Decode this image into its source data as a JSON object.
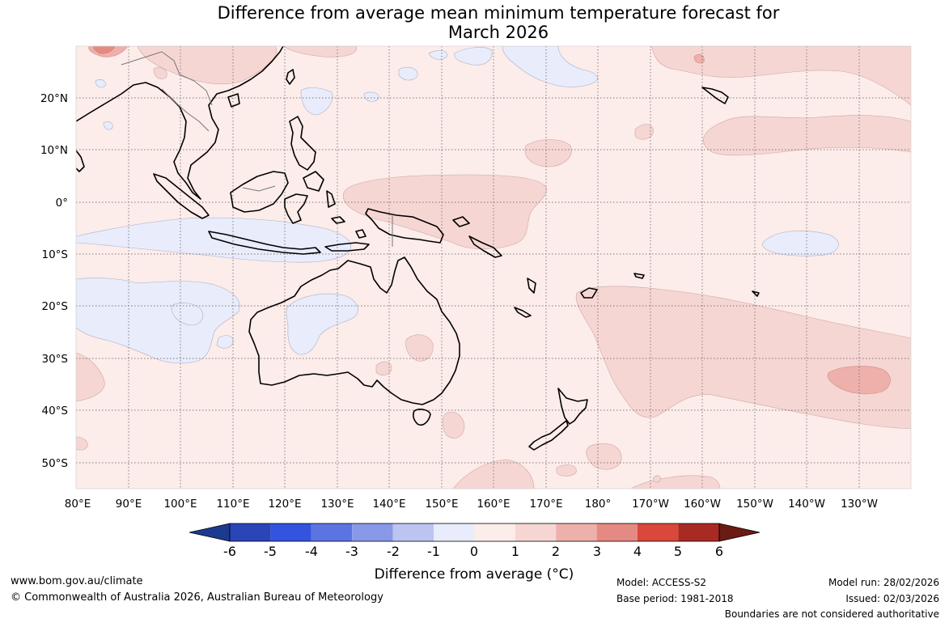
{
  "title": {
    "line1": "Difference from average mean minimum temperature forecast for",
    "line2": "March 2026"
  },
  "map": {
    "lat_labels": [
      "20°N",
      "10°N",
      "0°",
      "10°S",
      "20°S",
      "30°S",
      "40°S",
      "50°S"
    ],
    "lon_labels": [
      "80°E",
      "90°E",
      "100°E",
      "110°E",
      "120°E",
      "130°E",
      "140°E",
      "150°E",
      "160°E",
      "170°E",
      "180°",
      "170°W",
      "160°W",
      "150°W",
      "140°W",
      "130°W"
    ],
    "colors": {
      "ocean_0_1": "#fcecea",
      "band_1_2": "#f6d6d3",
      "band_2_3": "#eeb0ab",
      "band_3_4": "#e58a82",
      "neg_0_1": "#e8ecfb",
      "coast": "#000000",
      "grid": "#555555"
    }
  },
  "colorbar": {
    "ticks": [
      "-6",
      "-5",
      "-4",
      "-3",
      "-2",
      "-1",
      "0",
      "1",
      "2",
      "3",
      "4",
      "5",
      "6"
    ],
    "colors": [
      "#1c3a8e",
      "#2a45b8",
      "#3354de",
      "#5b74e2",
      "#8998e8",
      "#bcc4f2",
      "#e8ecfb",
      "#fcecea",
      "#f6d6d3",
      "#eeb0ab",
      "#e58a82",
      "#d9483b",
      "#a82a22",
      "#6b1a14"
    ],
    "label": "Difference from average (°C)"
  },
  "footer": {
    "website": "www.bom.gov.au/climate",
    "copyright": "© Commonwealth of Australia 2026, Australian Bureau of Meteorology",
    "model": "Model: ACCESS-S2",
    "base_period": "Base period: 1981-2018",
    "model_run": "Model run: 28/02/2026",
    "issued": "Issued: 02/03/2026",
    "disclaimer": "Boundaries are not considered authoritative"
  }
}
